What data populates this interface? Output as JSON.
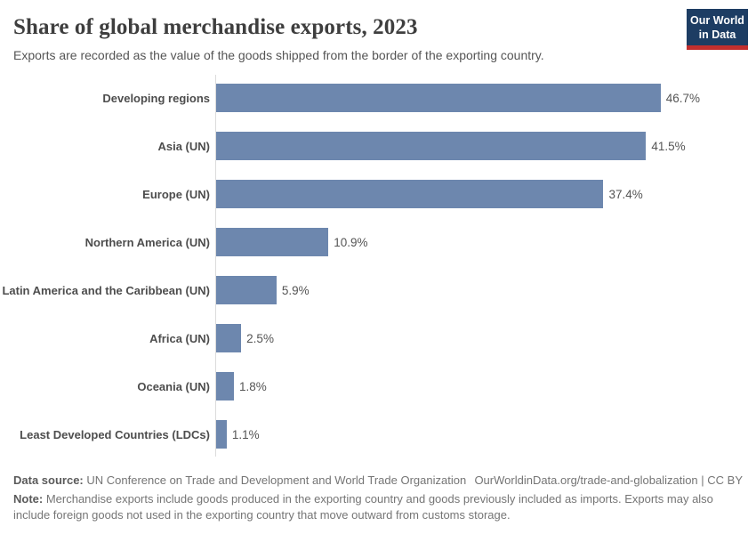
{
  "header": {
    "title": "Share of global merchandise exports, 2023",
    "subtitle": "Exports are recorded as the value of the goods shipped from the border of the exporting country.",
    "logo": {
      "line1": "Our World",
      "line2": "in Data"
    }
  },
  "chart_data": {
    "type": "bar",
    "orientation": "horizontal",
    "title": "Share of global merchandise exports, 2023",
    "unit": "%",
    "categories": [
      "Developing regions",
      "Asia (UN)",
      "Europe (UN)",
      "Northern America (UN)",
      "Latin America and the Caribbean (UN)",
      "Africa (UN)",
      "Oceania (UN)",
      "Least Developed Countries (LDCs)"
    ],
    "values": [
      46.7,
      41.5,
      37.4,
      10.9,
      5.9,
      2.5,
      1.8,
      1.1
    ],
    "value_labels": [
      "46.7%",
      "41.5%",
      "37.4%",
      "10.9%",
      "5.9%",
      "2.5%",
      "1.8%",
      "1.1%"
    ],
    "xlim": [
      0,
      46.7
    ],
    "grid": false,
    "legend": "none",
    "bar_color": "#6d87ae",
    "axis_line_color": "#dcdcdc"
  },
  "footer": {
    "source_label": "Data source:",
    "source_text": " UN Conference on Trade and Development and World Trade Organization",
    "link_text": "OurWorldinData.org/trade-and-globalization | CC BY",
    "note_label": "Note:",
    "note_text": " Merchandise exports include goods produced in the exporting country and goods previously included as imports. Exports may also include foreign goods not used in the exporting country that move outward from customs storage."
  },
  "colors": {
    "bar": "#6d87ae",
    "logo_background": "#1d3d63",
    "logo_underline": "#c22f2e",
    "title_text": "#3e3e3e",
    "body_text": "#555555",
    "footer_text": "#757575"
  }
}
